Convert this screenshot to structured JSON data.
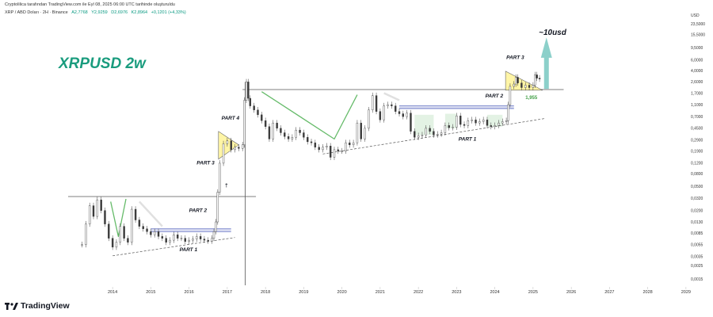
{
  "header": {
    "credit": "Cryptolilica tarafından TradingView.com ile Eyl 08, 2025 06:00 UTC tarihinde oluşturuldu",
    "symbol_line": "XRP / ABD Doları · 2H · Binance",
    "ohlc": {
      "o": "A2,7768",
      "h": "Y2,9259",
      "l": "D2,6976",
      "c": "K2,8964",
      "change": "+0,1201 (+4,33%)"
    }
  },
  "brand": {
    "name": "TradingView",
    "color": "#131722"
  },
  "colors": {
    "accent_title": "#1a9c7e",
    "candles_up": "#3a3a3a",
    "candles_down": "#3a3a3a",
    "arrow_green": "#66bb6a",
    "triangle_fill": "#fff59d",
    "channel_blue": "#5c6bc0",
    "target_arrow": "#80cbc4"
  },
  "chart_data": {
    "type": "candlestick",
    "title": "XRPUSD 2w",
    "y_axis": {
      "unit": "USD",
      "scale": "log",
      "ticks": [
        "23,5000",
        "15,5000",
        "9,5000",
        "6,0000",
        "4,0000",
        "2,6000",
        "1,7000",
        "1,1000",
        "0,7000",
        "0,4500",
        "0,2900",
        "0,1900",
        "0,1200",
        "0,0800",
        "0,0500",
        "0,0320",
        "0,0200",
        "0,0130",
        "0,0085",
        "0,0055",
        "0,0035",
        "0,0025",
        "0,0015"
      ]
    },
    "x_axis": {
      "ticks": [
        "2014",
        "2015",
        "2016",
        "2017",
        "2018",
        "2019",
        "2020",
        "2021",
        "2022",
        "2023",
        "2024",
        "2025",
        "2026",
        "2027",
        "2028",
        "2029"
      ]
    },
    "series": [
      {
        "values": [
          [
            2013.7,
            0.0055
          ],
          [
            2013.8,
            0.012
          ],
          [
            2013.9,
            0.024
          ],
          [
            2014.0,
            0.016
          ],
          [
            2014.1,
            0.03
          ],
          [
            2014.2,
            0.02
          ],
          [
            2014.3,
            0.012
          ],
          [
            2014.4,
            0.007
          ],
          [
            2014.5,
            0.005
          ],
          [
            2014.6,
            0.006
          ],
          [
            2014.7,
            0.011
          ],
          [
            2014.8,
            0.007
          ],
          [
            2014.9,
            0.006
          ],
          [
            2015.0,
            0.021
          ],
          [
            2015.1,
            0.014
          ],
          [
            2015.2,
            0.011
          ],
          [
            2015.3,
            0.01
          ],
          [
            2015.4,
            0.009
          ],
          [
            2015.5,
            0.008
          ],
          [
            2015.6,
            0.009
          ],
          [
            2015.7,
            0.0075
          ],
          [
            2015.8,
            0.007
          ],
          [
            2015.9,
            0.006
          ],
          [
            2016.0,
            0.0065
          ],
          [
            2016.1,
            0.008
          ],
          [
            2016.2,
            0.007
          ],
          [
            2016.3,
            0.007
          ],
          [
            2016.4,
            0.0062
          ],
          [
            2016.5,
            0.0065
          ],
          [
            2016.6,
            0.0068
          ],
          [
            2016.7,
            0.0075
          ],
          [
            2016.8,
            0.0068
          ],
          [
            2016.9,
            0.0065
          ],
          [
            2017.0,
            0.0063
          ],
          [
            2017.1,
            0.007
          ],
          [
            2017.15,
            0.009
          ],
          [
            2017.2,
            0.013
          ],
          [
            2017.25,
            0.04
          ],
          [
            2017.3,
            0.12
          ],
          [
            2017.4,
            0.25
          ],
          [
            2017.5,
            0.28
          ],
          [
            2017.6,
            0.2
          ],
          [
            2017.7,
            0.22
          ],
          [
            2017.8,
            0.21
          ],
          [
            2017.9,
            0.24
          ],
          [
            2017.95,
            1.3
          ],
          [
            2018.0,
            2.6
          ],
          [
            2018.05,
            1.4
          ],
          [
            2018.1,
            1.05
          ],
          [
            2018.2,
            0.9
          ],
          [
            2018.3,
            0.75
          ],
          [
            2018.4,
            0.6
          ],
          [
            2018.5,
            0.48
          ],
          [
            2018.6,
            0.3
          ],
          [
            2018.7,
            0.55
          ],
          [
            2018.8,
            0.45
          ],
          [
            2018.9,
            0.38
          ],
          [
            2019.0,
            0.33
          ],
          [
            2019.1,
            0.3
          ],
          [
            2019.2,
            0.32
          ],
          [
            2019.3,
            0.42
          ],
          [
            2019.4,
            0.38
          ],
          [
            2019.5,
            0.32
          ],
          [
            2019.6,
            0.27
          ],
          [
            2019.7,
            0.26
          ],
          [
            2019.8,
            0.22
          ],
          [
            2019.9,
            0.2
          ],
          [
            2020.0,
            0.22
          ],
          [
            2020.1,
            0.23
          ],
          [
            2020.2,
            0.15
          ],
          [
            2020.3,
            0.2
          ],
          [
            2020.4,
            0.19
          ],
          [
            2020.5,
            0.19
          ],
          [
            2020.6,
            0.26
          ],
          [
            2020.7,
            0.24
          ],
          [
            2020.8,
            0.26
          ],
          [
            2020.9,
            0.55
          ],
          [
            2021.0,
            0.3
          ],
          [
            2021.1,
            0.45
          ],
          [
            2021.2,
            0.9
          ],
          [
            2021.3,
            1.55
          ],
          [
            2021.4,
            0.85
          ],
          [
            2021.5,
            0.62
          ],
          [
            2021.6,
            1.05
          ],
          [
            2021.7,
            1.1
          ],
          [
            2021.8,
            1.05
          ],
          [
            2021.9,
            0.85
          ],
          [
            2022.0,
            0.78
          ],
          [
            2022.1,
            0.7
          ],
          [
            2022.2,
            0.8
          ],
          [
            2022.3,
            0.4
          ],
          [
            2022.4,
            0.32
          ],
          [
            2022.5,
            0.34
          ],
          [
            2022.6,
            0.35
          ],
          [
            2022.7,
            0.45
          ],
          [
            2022.8,
            0.4
          ],
          [
            2022.9,
            0.35
          ],
          [
            2023.0,
            0.36
          ],
          [
            2023.1,
            0.38
          ],
          [
            2023.2,
            0.5
          ],
          [
            2023.3,
            0.46
          ],
          [
            2023.4,
            0.47
          ],
          [
            2023.5,
            0.72
          ],
          [
            2023.6,
            0.52
          ],
          [
            2023.7,
            0.5
          ],
          [
            2023.8,
            0.6
          ],
          [
            2023.9,
            0.62
          ],
          [
            2024.0,
            0.55
          ],
          [
            2024.1,
            0.58
          ],
          [
            2024.2,
            0.62
          ],
          [
            2024.3,
            0.5
          ],
          [
            2024.4,
            0.48
          ],
          [
            2024.5,
            0.5
          ],
          [
            2024.6,
            0.55
          ],
          [
            2024.7,
            0.58
          ],
          [
            2024.8,
            0.6
          ],
          [
            2024.85,
            1.1
          ],
          [
            2024.9,
            2.2
          ],
          [
            2025.0,
            2.4
          ],
          [
            2025.05,
            3.1
          ],
          [
            2025.1,
            2.5
          ],
          [
            2025.2,
            2.1
          ],
          [
            2025.3,
            2.3
          ],
          [
            2025.4,
            2.1
          ],
          [
            2025.5,
            2.3
          ],
          [
            2025.55,
            3.4
          ],
          [
            2025.6,
            3.0
          ],
          [
            2025.67,
            2.9
          ]
        ]
      }
    ],
    "resistance_lines": [
      0.034,
      1.95
    ],
    "support_lines": [
      {
        "from": [
          2014.5,
          0.0036
        ],
        "to": [
          2017.7,
          0.0072
        ]
      },
      {
        "from": [
          2020.0,
          0.17
        ],
        "to": [
          2025.8,
          0.65
        ]
      }
    ],
    "channels": [
      {
        "x": [
          2015.5,
          2017.6
        ],
        "y": [
          0.009,
          0.01
        ]
      },
      {
        "x": [
          2022.0,
          2025.0
        ],
        "y": [
          0.95,
          1.05
        ]
      }
    ],
    "annotations": {
      "part_1_a": "PART 1",
      "part_2_a": "PART 2",
      "part_3_a": "PART 3",
      "part_4": "PART 4",
      "part_1_b": "PART 1",
      "part_2_b": "PART 2",
      "part_3_b": "PART 3",
      "price_label": "1,955",
      "target": "~10usd"
    }
  }
}
